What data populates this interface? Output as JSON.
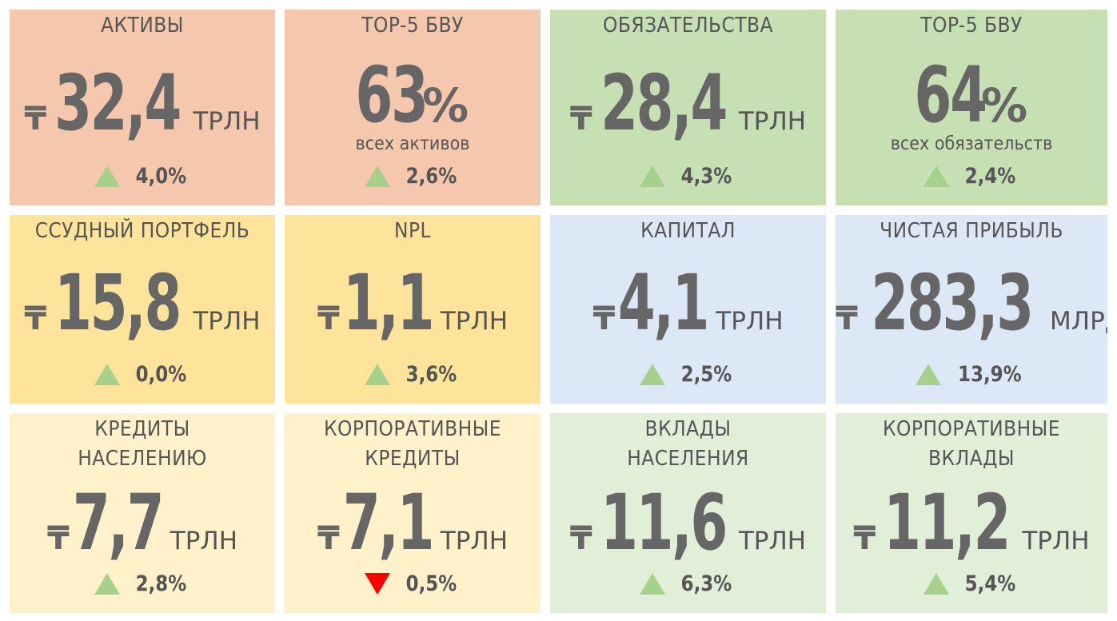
{
  "colors": {
    "orange": "#f5c8ad",
    "green": "#c6e0b4",
    "yellow": "#fee49a",
    "blue": "#dde8f6",
    "light_yellow": "#fff1c9",
    "light_green": "#e1efd8",
    "up": "#a6d18c",
    "down": "#ff0000"
  },
  "tiles": [
    {
      "title": [
        "АКТИВЫ"
      ],
      "currency": "₸",
      "value": "32,4",
      "unit": "ТРЛН",
      "change": "4,0%",
      "direction": "up",
      "color": "orange"
    },
    {
      "title": [
        "TOP-5 БВУ"
      ],
      "currency": "",
      "value": "63",
      "suffix": "%",
      "subtitle": "всех активов",
      "change": "2,6%",
      "direction": "up",
      "color": "orange"
    },
    {
      "title": [
        "ОБЯЗАТЕЛЬСТВА"
      ],
      "currency": "₸",
      "value": "28,4",
      "unit": "ТРЛН",
      "change": "4,3%",
      "direction": "up",
      "color": "green"
    },
    {
      "title": [
        "TOP-5 БВУ"
      ],
      "currency": "",
      "value": "64",
      "suffix": "%",
      "subtitle": "всех обязательств",
      "change": "2,4%",
      "direction": "up",
      "color": "green"
    },
    {
      "title": [
        "ССУДНЫЙ ПОРТФЕЛЬ"
      ],
      "currency": "₸",
      "value": "15,8",
      "unit": "ТРЛН",
      "change": "0,0%",
      "direction": "up",
      "color": "yellow"
    },
    {
      "title": [
        "NPL"
      ],
      "currency": "₸",
      "value": "1,1",
      "unit": "ТРЛН",
      "change": "3,6%",
      "direction": "up",
      "color": "yellow"
    },
    {
      "title": [
        "КАПИТАЛ"
      ],
      "currency": "₸",
      "value": "4,1",
      "unit": "ТРЛН",
      "change": "2,5%",
      "direction": "up",
      "color": "blue"
    },
    {
      "title": [
        "ЧИСТАЯ ПРИБЫЛЬ"
      ],
      "currency": "₸",
      "value": "283,3",
      "unit": "МЛРД",
      "change": "13,9%",
      "direction": "up",
      "color": "blue"
    },
    {
      "title": [
        "КРЕДИТЫ",
        "НАСЕЛЕНИЮ"
      ],
      "currency": "₸",
      "value": "7,7",
      "unit": "ТРЛН",
      "change": "2,8%",
      "direction": "up",
      "color": "light_yellow"
    },
    {
      "title": [
        "КОРПОРАТИВНЫЕ",
        "КРЕДИТЫ"
      ],
      "currency": "₸",
      "value": "7,1",
      "unit": "ТРЛН",
      "change": "0,5%",
      "direction": "down",
      "color": "light_yellow"
    },
    {
      "title": [
        "ВКЛАДЫ",
        "НАСЕЛЕНИЯ"
      ],
      "currency": "₸",
      "value": "11,6",
      "unit": "ТРЛН",
      "change": "6,3%",
      "direction": "up",
      "color": "light_green"
    },
    {
      "title": [
        "КОРПОРАТИВНЫЕ",
        "ВКЛАДЫ"
      ],
      "currency": "₸",
      "value": "11,2",
      "unit": "ТРЛН",
      "change": "5,4%",
      "direction": "up",
      "color": "light_green"
    }
  ]
}
